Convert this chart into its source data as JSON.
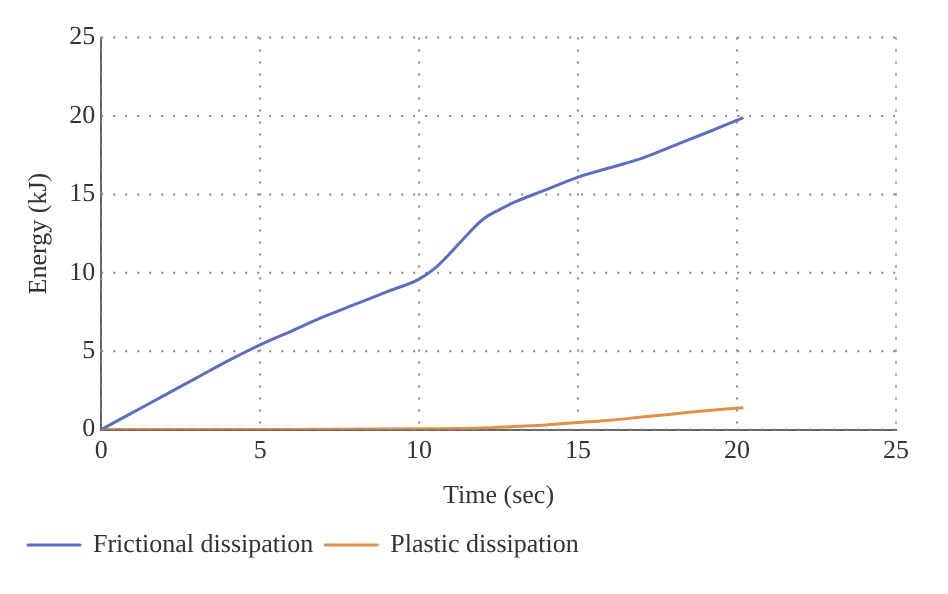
{
  "chart_data": {
    "type": "line",
    "xlabel": "Time (sec)",
    "ylabel": "Energy (kJ)",
    "xlim": [
      0,
      25
    ],
    "xticks": [
      0,
      5,
      10,
      15,
      20,
      25
    ],
    "ylim": [
      0,
      25
    ],
    "yticks": [
      0,
      5,
      10,
      15,
      20,
      25
    ],
    "grid": true,
    "legend": "bottom left",
    "marker": "none",
    "line_style": "solid",
    "series": [
      {
        "name": "Frictional dissipation",
        "color": "#5b6fc0",
        "x": [
          0,
          1,
          2,
          3,
          4,
          5,
          6,
          7,
          8,
          9,
          10,
          10.5,
          11,
          11.5,
          12,
          12.5,
          13,
          14,
          15,
          16,
          17,
          18,
          19,
          20.2
        ],
        "values": [
          0,
          1.1,
          2.2,
          3.3,
          4.4,
          5.4,
          6.3,
          7.2,
          8,
          8.8,
          9.6,
          10.3,
          11.3,
          12.4,
          13.4,
          14,
          14.5,
          15.3,
          16.1,
          16.7,
          17.3,
          18.1,
          18.9,
          19.9
        ]
      },
      {
        "name": "Plastic dissipation",
        "color": "#e0904a",
        "x": [
          0,
          5,
          10,
          12,
          13,
          14,
          15,
          16,
          17,
          18,
          19,
          20.2
        ],
        "values": [
          0,
          0,
          0.05,
          0.1,
          0.2,
          0.3,
          0.45,
          0.6,
          0.8,
          1,
          1.2,
          1.4
        ]
      }
    ]
  }
}
